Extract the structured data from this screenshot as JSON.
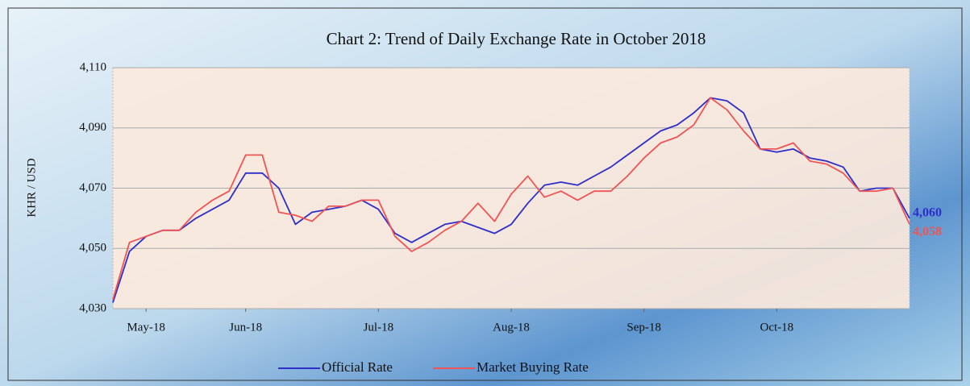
{
  "chart_data": {
    "type": "line",
    "title": "Chart 2: Trend of Daily Exchange Rate in October 2018",
    "ylabel": "KHR / USD",
    "categories": [
      null,
      null,
      "May-18",
      null,
      null,
      null,
      null,
      null,
      "Jun-18",
      null,
      null,
      null,
      null,
      null,
      null,
      null,
      "Jul-18",
      null,
      null,
      null,
      null,
      null,
      null,
      null,
      "Aug-18",
      null,
      null,
      null,
      null,
      null,
      null,
      null,
      "Sep-18",
      null,
      null,
      null,
      null,
      null,
      null,
      null,
      "Oct-18",
      null,
      null,
      null,
      null,
      null,
      null,
      null,
      null
    ],
    "series": [
      {
        "name": "Official Rate",
        "color": "#2e2ec8",
        "values": [
          4032,
          4049,
          4054,
          4056,
          4056,
          4060,
          4063,
          4066,
          4075,
          4075,
          4070,
          4058,
          4062,
          4063,
          4064,
          4066,
          4063,
          4055,
          4052,
          4055,
          4058,
          4059,
          4057,
          4055,
          4058,
          4065,
          4071,
          4072,
          4071,
          4074,
          4077,
          4081,
          4085,
          4089,
          4091,
          4095,
          4100,
          4099,
          4095,
          4083,
          4082,
          4083,
          4080,
          4079,
          4077,
          4069,
          4070,
          4070,
          4060
        ],
        "value_labels": [
          null,
          null,
          null,
          null,
          null,
          null,
          null,
          null,
          null,
          null,
          null,
          null,
          null,
          null,
          null,
          null,
          null,
          null,
          null,
          null,
          null,
          null,
          null,
          null,
          null,
          null,
          null,
          null,
          null,
          null,
          null,
          null,
          null,
          null,
          null,
          null,
          null,
          null,
          null,
          null,
          null,
          null,
          null,
          null,
          null,
          null,
          null,
          null,
          "4,060"
        ]
      },
      {
        "name": "Market Buying Rate",
        "color": "#f05454",
        "values": [
          4033,
          4052,
          4054,
          4056,
          4056,
          4062,
          4066,
          4069,
          4081,
          4081,
          4062,
          4061,
          4059,
          4064,
          4064,
          4066,
          4066,
          4054,
          4049,
          4052,
          4056,
          4059,
          4065,
          4059,
          4068,
          4074,
          4067,
          4069,
          4066,
          4069,
          4069,
          4074,
          4080,
          4085,
          4087,
          4091,
          4100,
          4096,
          4089,
          4083,
          4083,
          4085,
          4079,
          4078,
          4075,
          4069,
          4069,
          4070,
          4058
        ],
        "value_labels": [
          null,
          null,
          null,
          null,
          null,
          null,
          null,
          null,
          null,
          null,
          null,
          null,
          null,
          null,
          null,
          null,
          null,
          null,
          null,
          null,
          null,
          null,
          null,
          null,
          null,
          null,
          null,
          null,
          null,
          null,
          null,
          null,
          null,
          null,
          null,
          null,
          null,
          null,
          null,
          null,
          null,
          null,
          null,
          null,
          null,
          null,
          null,
          null,
          "4,058"
        ]
      }
    ],
    "ylim": [
      4030,
      4110
    ],
    "yticks": [
      {
        "value": 4030,
        "label": "4,030"
      },
      {
        "value": 4050,
        "label": "4,050"
      },
      {
        "value": 4070,
        "label": "4,070"
      },
      {
        "value": 4090,
        "label": "4,090"
      },
      {
        "value": 4110,
        "label": "4,110"
      }
    ],
    "grid": true,
    "legend": "bottom"
  }
}
